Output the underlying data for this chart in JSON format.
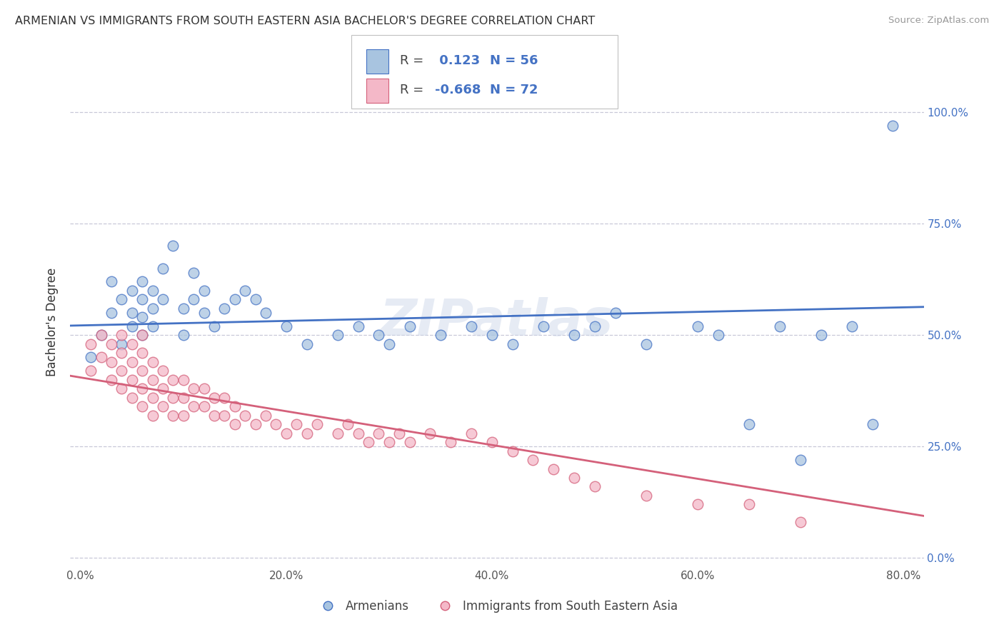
{
  "title": "ARMENIAN VS IMMIGRANTS FROM SOUTH EASTERN ASIA BACHELOR'S DEGREE CORRELATION CHART",
  "source": "Source: ZipAtlas.com",
  "ylabel": "Bachelor's Degree",
  "xlabel_ticks": [
    "0.0%",
    "20.0%",
    "40.0%",
    "60.0%",
    "80.0%"
  ],
  "ylabel_ticks_right": [
    "0.0%",
    "25.0%",
    "50.0%",
    "75.0%",
    "100.0%"
  ],
  "xlim": [
    -0.01,
    0.82
  ],
  "ylim": [
    -0.02,
    1.08
  ],
  "y_tick_vals": [
    0.0,
    0.25,
    0.5,
    0.75,
    1.0
  ],
  "x_tick_vals": [
    0.0,
    0.2,
    0.4,
    0.6,
    0.8
  ],
  "armenian_color": "#a8c4e0",
  "armenian_line_color": "#4472c4",
  "sea_color": "#f4b8c8",
  "sea_line_color": "#d4607a",
  "r_armenian": 0.123,
  "n_armenian": 56,
  "r_sea": -0.668,
  "n_sea": 72,
  "legend_label_armenian": "Armenians",
  "legend_label_sea": "Immigrants from South Eastern Asia",
  "watermark": "ZIPatlas",
  "armenian_x": [
    0.01,
    0.02,
    0.03,
    0.03,
    0.04,
    0.04,
    0.05,
    0.05,
    0.05,
    0.06,
    0.06,
    0.06,
    0.06,
    0.07,
    0.07,
    0.07,
    0.08,
    0.08,
    0.09,
    0.1,
    0.1,
    0.11,
    0.11,
    0.12,
    0.12,
    0.13,
    0.14,
    0.15,
    0.16,
    0.17,
    0.18,
    0.2,
    0.22,
    0.25,
    0.27,
    0.29,
    0.3,
    0.32,
    0.35,
    0.38,
    0.4,
    0.42,
    0.45,
    0.48,
    0.5,
    0.52,
    0.55,
    0.6,
    0.62,
    0.65,
    0.68,
    0.7,
    0.72,
    0.75,
    0.77,
    0.79
  ],
  "armenian_y": [
    0.45,
    0.5,
    0.55,
    0.62,
    0.58,
    0.48,
    0.6,
    0.55,
    0.52,
    0.58,
    0.62,
    0.54,
    0.5,
    0.6,
    0.56,
    0.52,
    0.65,
    0.58,
    0.7,
    0.56,
    0.5,
    0.64,
    0.58,
    0.6,
    0.55,
    0.52,
    0.56,
    0.58,
    0.6,
    0.58,
    0.55,
    0.52,
    0.48,
    0.5,
    0.52,
    0.5,
    0.48,
    0.52,
    0.5,
    0.52,
    0.5,
    0.48,
    0.52,
    0.5,
    0.52,
    0.55,
    0.48,
    0.52,
    0.5,
    0.3,
    0.52,
    0.22,
    0.5,
    0.52,
    0.3,
    0.97
  ],
  "sea_x": [
    0.01,
    0.01,
    0.02,
    0.02,
    0.03,
    0.03,
    0.03,
    0.04,
    0.04,
    0.04,
    0.04,
    0.05,
    0.05,
    0.05,
    0.05,
    0.06,
    0.06,
    0.06,
    0.06,
    0.06,
    0.07,
    0.07,
    0.07,
    0.07,
    0.08,
    0.08,
    0.08,
    0.09,
    0.09,
    0.09,
    0.1,
    0.1,
    0.1,
    0.11,
    0.11,
    0.12,
    0.12,
    0.13,
    0.13,
    0.14,
    0.14,
    0.15,
    0.15,
    0.16,
    0.17,
    0.18,
    0.19,
    0.2,
    0.21,
    0.22,
    0.23,
    0.25,
    0.26,
    0.27,
    0.28,
    0.29,
    0.3,
    0.31,
    0.32,
    0.34,
    0.36,
    0.38,
    0.4,
    0.42,
    0.44,
    0.46,
    0.48,
    0.5,
    0.55,
    0.6,
    0.65,
    0.7
  ],
  "sea_y": [
    0.48,
    0.42,
    0.5,
    0.45,
    0.48,
    0.44,
    0.4,
    0.5,
    0.46,
    0.42,
    0.38,
    0.48,
    0.44,
    0.4,
    0.36,
    0.46,
    0.42,
    0.38,
    0.34,
    0.5,
    0.44,
    0.4,
    0.36,
    0.32,
    0.42,
    0.38,
    0.34,
    0.4,
    0.36,
    0.32,
    0.4,
    0.36,
    0.32,
    0.38,
    0.34,
    0.38,
    0.34,
    0.36,
    0.32,
    0.36,
    0.32,
    0.34,
    0.3,
    0.32,
    0.3,
    0.32,
    0.3,
    0.28,
    0.3,
    0.28,
    0.3,
    0.28,
    0.3,
    0.28,
    0.26,
    0.28,
    0.26,
    0.28,
    0.26,
    0.28,
    0.26,
    0.28,
    0.26,
    0.24,
    0.22,
    0.2,
    0.18,
    0.16,
    0.14,
    0.12,
    0.12,
    0.08
  ]
}
